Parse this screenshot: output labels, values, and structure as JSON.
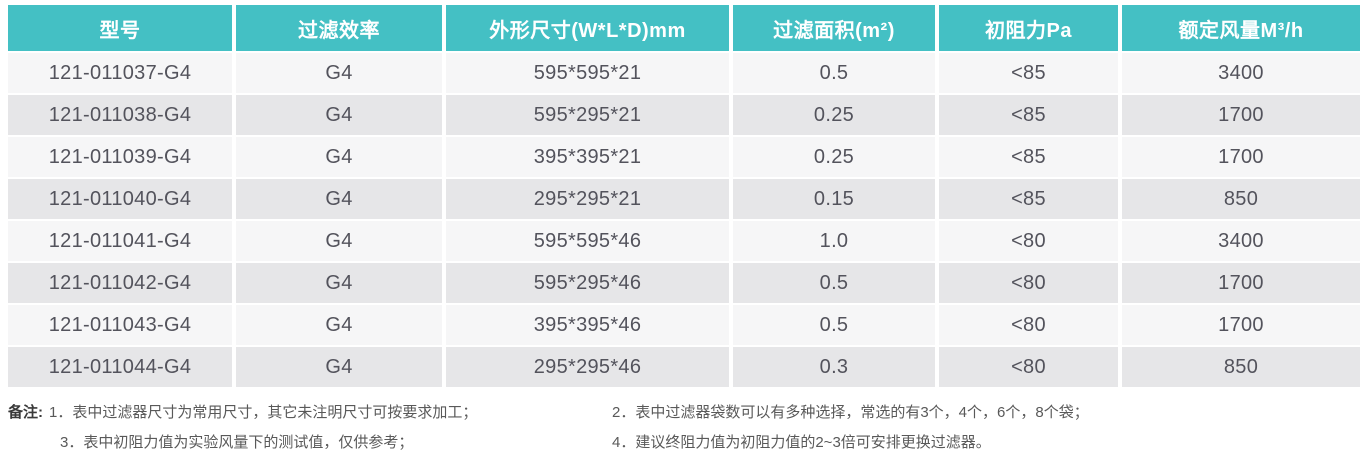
{
  "colors": {
    "header_bg": "#44c0c4",
    "header_text": "#ffffff",
    "row_light": "#f6f6f7",
    "row_dark": "#e6e6e8",
    "cell_text": "#53535c",
    "note_text": "#595959"
  },
  "table": {
    "headers": [
      "型号",
      "过滤效率",
      "外形尺寸(W*L*D)mm",
      "过滤面积(m²)",
      "初阻力Pa",
      "额定风量M³/h"
    ],
    "rows": [
      [
        "121-011037-G4",
        "G4",
        "595*595*21",
        "0.5",
        "<85",
        "3400"
      ],
      [
        "121-011038-G4",
        "G4",
        "595*295*21",
        "0.25",
        "<85",
        "1700"
      ],
      [
        "121-011039-G4",
        "G4",
        "395*395*21",
        "0.25",
        "<85",
        "1700"
      ],
      [
        "121-011040-G4",
        "G4",
        "295*295*21",
        "0.15",
        "<85",
        "850"
      ],
      [
        "121-011041-G4",
        "G4",
        "595*595*46",
        "1.0",
        "<80",
        "3400"
      ],
      [
        "121-011042-G4",
        "G4",
        "595*295*46",
        "0.5",
        "<80",
        "1700"
      ],
      [
        "121-011043-G4",
        "G4",
        "395*395*46",
        "0.5",
        "<80",
        "1700"
      ],
      [
        "121-011044-G4",
        "G4",
        "295*295*46",
        "0.3",
        "<80",
        "850"
      ]
    ]
  },
  "notes": {
    "label": "备注:",
    "items": [
      "1．表中过滤器尺寸为常用尺寸，其它未注明尺寸可按要求加工；",
      "2．表中过滤器袋数可以有多种选择，常选的有3个，4个，6个，8个袋；",
      "3．表中初阻力值为实验风量下的测试值，仅供参考；",
      "4．建议终阻力值为初阻力值的2~3倍可安排更换过滤器。"
    ]
  }
}
